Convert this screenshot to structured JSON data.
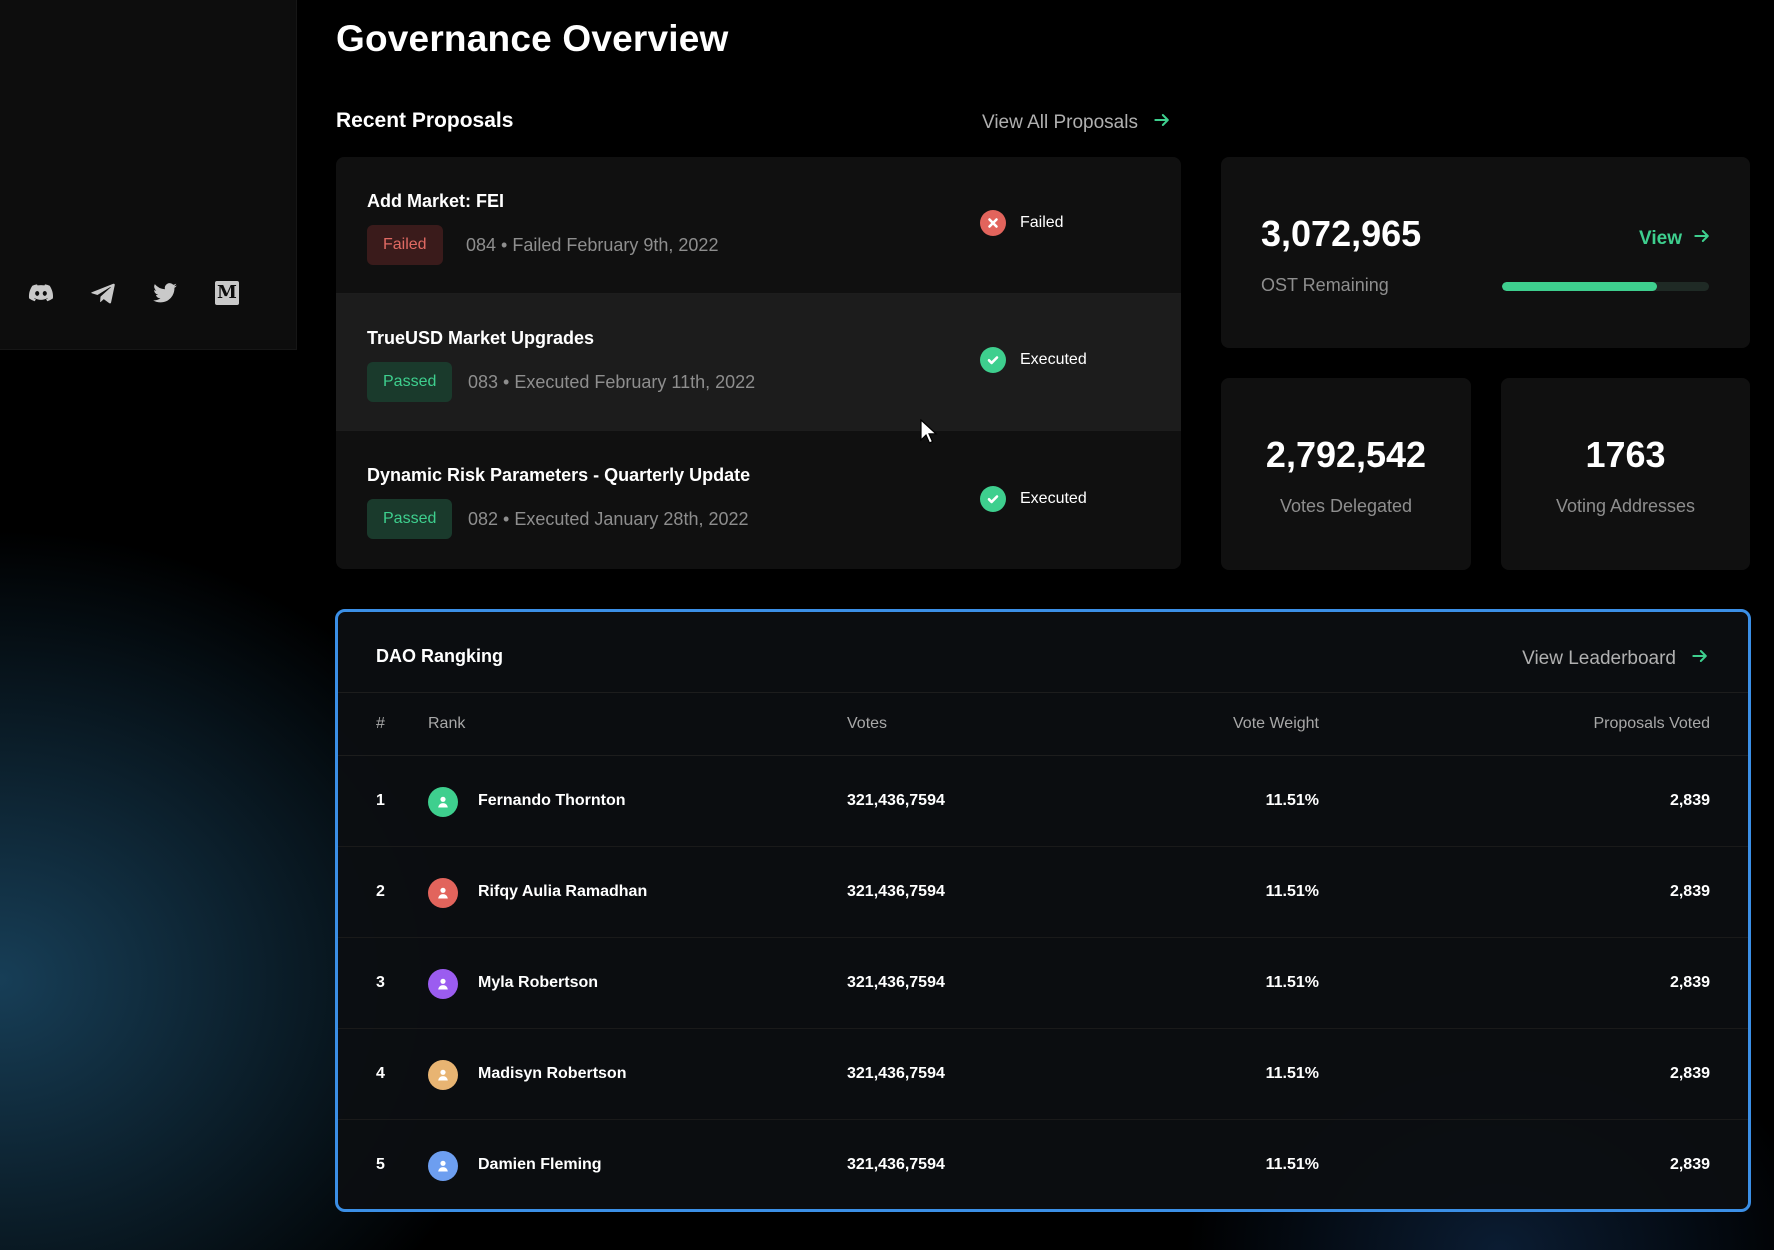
{
  "sidebar": {
    "socials": [
      {
        "name": "discord-icon"
      },
      {
        "name": "telegram-icon"
      },
      {
        "name": "twitter-icon"
      },
      {
        "name": "medium-icon",
        "glyph": "M"
      }
    ]
  },
  "page": {
    "title": "Governance Overview"
  },
  "proposals_section": {
    "title": "Recent Proposals",
    "view_all": "View All Proposals"
  },
  "proposals": [
    {
      "title": "Add Market: FEI",
      "badge": "Failed",
      "meta": "084 • Failed February 9th, 2022",
      "status": "Failed"
    },
    {
      "title": "TrueUSD Market Upgrades",
      "badge": "Passed",
      "meta": "083 • Executed February 11th, 2022",
      "status": "Executed"
    },
    {
      "title": "Dynamic Risk Parameters - Quarterly Update",
      "badge": "Passed",
      "meta": "082 • Executed January 28th, 2022",
      "status": "Executed"
    }
  ],
  "ost": {
    "value": "3,072,965",
    "label": "OST Remaining",
    "view": "View",
    "progress": 0.75
  },
  "votes_delegated": {
    "value": "2,792,542",
    "label": "Votes Delegated"
  },
  "voting_addresses": {
    "value": "1763",
    "label": "Voting Addresses"
  },
  "ranking": {
    "title": "DAO Rangking",
    "view_leaderboard": "View Leaderboard",
    "columns": {
      "num": "#",
      "rank": "Rank",
      "votes": "Votes",
      "weight": "Vote Weight",
      "proposals": "Proposals Voted"
    },
    "rows": [
      {
        "num": "1",
        "name": "Fernando Thornton",
        "votes": "321,436,7594",
        "weight": "11.51%",
        "proposals": "2,839",
        "color": "#3ecf8e"
      },
      {
        "num": "2",
        "name": "Rifqy Aulia Ramadhan",
        "votes": "321,436,7594",
        "weight": "11.51%",
        "proposals": "2,839",
        "color": "#e2645c"
      },
      {
        "num": "3",
        "name": "Myla Robertson",
        "votes": "321,436,7594",
        "weight": "11.51%",
        "proposals": "2,839",
        "color": "#9b5cf0"
      },
      {
        "num": "4",
        "name": "Madisyn Robertson",
        "votes": "321,436,7594",
        "weight": "11.51%",
        "proposals": "2,839",
        "color": "#e8b472"
      },
      {
        "num": "5",
        "name": "Damien Fleming",
        "votes": "321,436,7594",
        "weight": "11.51%",
        "proposals": "2,839",
        "color": "#6d9ef0"
      }
    ]
  },
  "colors": {
    "accent": "#3ecf8e",
    "danger": "#e2645c",
    "highlight_border": "#3b8fe6"
  }
}
